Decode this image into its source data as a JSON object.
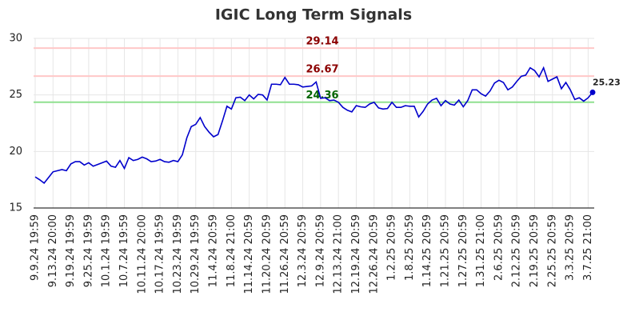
{
  "chart_data": {
    "type": "line",
    "title": "IGIC Long Term Signals",
    "categories": [
      "9.9.24 19:59",
      null,
      null,
      null,
      "9.13.24 20:00",
      null,
      null,
      null,
      "9.19.24 19:59",
      null,
      null,
      null,
      "9.25.24 19:59",
      null,
      null,
      null,
      "10.1.24 19:59",
      null,
      null,
      null,
      "10.7.24 19:59",
      null,
      null,
      null,
      "10.11.24 20:00",
      null,
      null,
      null,
      "10.17.24 19:59",
      null,
      null,
      null,
      "10.23.24 19:59",
      null,
      null,
      null,
      "10.29.24 19:59",
      null,
      null,
      null,
      "11.4.24 20:59",
      null,
      null,
      null,
      "11.8.24 21:00",
      null,
      null,
      null,
      "11.14.24 20:59",
      null,
      null,
      null,
      "11.20.24 20:59",
      null,
      null,
      null,
      "11.26.24 20:59",
      null,
      null,
      null,
      "12.3.24 20:59",
      null,
      null,
      null,
      "12.9.24 20:59",
      null,
      null,
      null,
      "12.13.24 21:00",
      null,
      null,
      null,
      "12.19.24 20:59",
      null,
      null,
      null,
      "12.26.24 20:59",
      null,
      null,
      null,
      "1.2.25 20:59",
      null,
      null,
      null,
      "1.8.25 20:59",
      null,
      null,
      null,
      "1.14.25 20:59",
      null,
      null,
      null,
      "1.21.25 20:59",
      null,
      null,
      null,
      "1.27.25 20:59",
      null,
      null,
      null,
      "1.31.25 21:00",
      null,
      null,
      null,
      "2.6.25 20:59",
      null,
      null,
      null,
      "2.12.25 20:59",
      null,
      null,
      null,
      "2.19.25 20:59",
      null,
      null,
      null,
      "2.25.25 20:59",
      null,
      null,
      null,
      "3.3.25 20:59",
      null,
      null,
      null,
      "3.7.25 21:00",
      null
    ],
    "series": [
      {
        "color": "#0000cc",
        "values": [
          17.75,
          17.5,
          17.2,
          17.7,
          18.2,
          18.3,
          18.4,
          18.3,
          18.9,
          19.1,
          19.1,
          18.8,
          19.0,
          18.7,
          18.85,
          19.0,
          19.15,
          18.7,
          18.6,
          19.2,
          18.5,
          19.45,
          19.2,
          19.3,
          19.5,
          19.35,
          19.1,
          19.15,
          19.3,
          19.1,
          19.05,
          19.2,
          19.1,
          19.7,
          21.2,
          22.2,
          22.4,
          23.0,
          22.2,
          21.7,
          21.3,
          21.5,
          22.7,
          24.0,
          23.75,
          24.75,
          24.8,
          24.5,
          25.0,
          24.65,
          25.05,
          25.0,
          24.55,
          25.95,
          25.95,
          25.9,
          26.55,
          25.95,
          25.95,
          25.9,
          25.7,
          25.75,
          25.8,
          26.15,
          24.7,
          24.75,
          24.5,
          24.55,
          24.35,
          23.9,
          23.65,
          23.5,
          24.05,
          23.95,
          23.9,
          24.2,
          24.35,
          23.85,
          23.75,
          23.8,
          24.35,
          23.9,
          23.9,
          24.05,
          24.0,
          24.0,
          23.05,
          23.55,
          24.2,
          24.55,
          24.7,
          24.05,
          24.5,
          24.2,
          24.1,
          24.55,
          23.95,
          24.5,
          25.45,
          25.45,
          25.1,
          24.9,
          25.35,
          26.05,
          26.3,
          26.1,
          25.45,
          25.7,
          26.2,
          26.65,
          26.75,
          27.4,
          27.15,
          26.6,
          27.4,
          26.2,
          26.4,
          26.6,
          25.55,
          26.1,
          25.45,
          24.6,
          24.75,
          24.45,
          24.75,
          25.23
        ]
      }
    ],
    "hlines": [
      {
        "value": 29.14,
        "color": "#ffc8c8",
        "label_color": "#8b0000"
      },
      {
        "value": 26.67,
        "color": "#ffc8c8",
        "label_color": "#8b0000"
      },
      {
        "value": 24.36,
        "color": "#90e090",
        "label_color": "#006400"
      }
    ],
    "ylim": [
      15,
      30
    ],
    "yticks": [
      15,
      20,
      25,
      30
    ],
    "grid": true
  }
}
